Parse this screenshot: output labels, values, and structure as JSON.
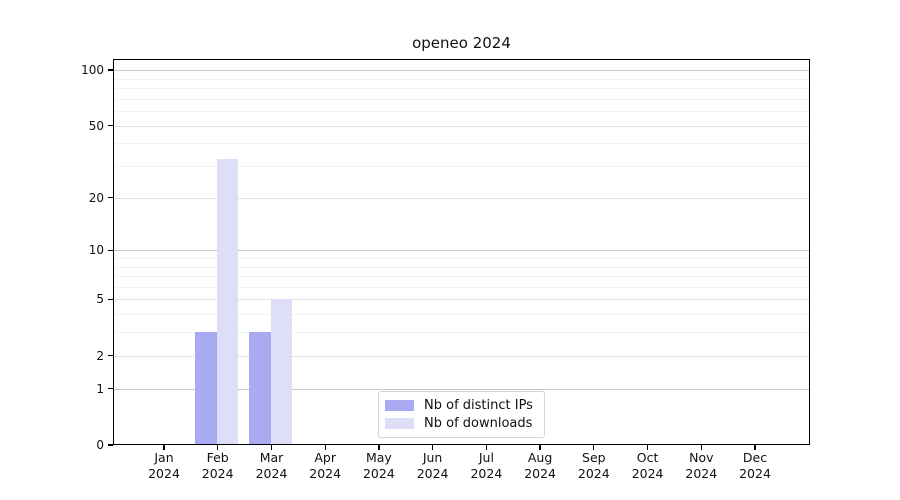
{
  "chart_data": {
    "type": "bar",
    "title": "openeo 2024",
    "x": {
      "categories": [
        "Jan",
        "Feb",
        "Mar",
        "Apr",
        "May",
        "Jun",
        "Jul",
        "Aug",
        "Sep",
        "Oct",
        "Nov",
        "Dec"
      ],
      "year_label": "2024"
    },
    "series": [
      {
        "name": "Nb of distinct IPs",
        "color": "#aaaaf3",
        "values": [
          0,
          3,
          3,
          0,
          0,
          0,
          0,
          0,
          0,
          0,
          0,
          0
        ]
      },
      {
        "name": "Nb of downloads",
        "color": "#dedef9",
        "values": [
          0,
          33,
          5,
          0,
          0,
          0,
          0,
          0,
          0,
          0,
          0,
          0
        ]
      }
    ],
    "y_axis": {
      "scale": "symlog",
      "transform": "ln(1+v)",
      "ticks": [
        0,
        1,
        2,
        5,
        10,
        20,
        50,
        100
      ],
      "minor_ticks": [
        3,
        4,
        6,
        7,
        8,
        9,
        30,
        40,
        60,
        70,
        80,
        90
      ],
      "decade_ticks": [
        1,
        10,
        100
      ],
      "max": 100
    },
    "grid": true,
    "legend": {
      "position": "bottom-center",
      "entries": [
        "Nb of distinct IPs",
        "Nb of downloads"
      ]
    }
  }
}
